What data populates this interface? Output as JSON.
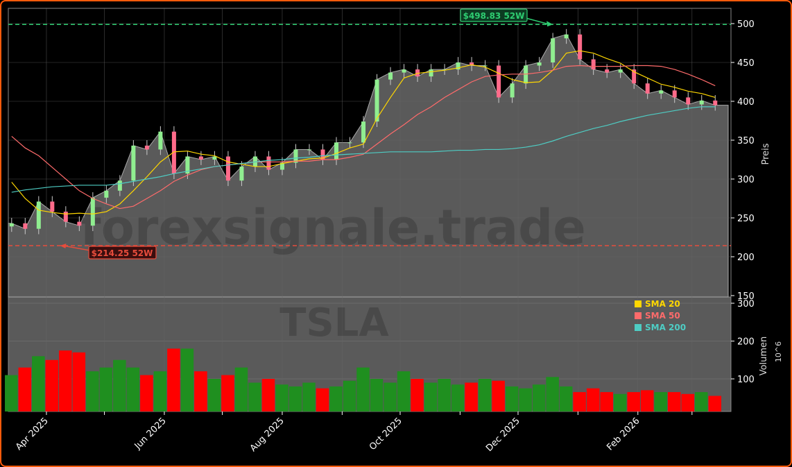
{
  "chart_data": [
    {
      "type": "candlestick",
      "panel": "price",
      "ticker_watermark": "TSLA",
      "watermark": "forexsignale.trade",
      "ylabel": "Preis",
      "ylim": [
        150,
        520
      ],
      "yticks": [
        150,
        200,
        250,
        300,
        350,
        400,
        450,
        500
      ],
      "grid": true,
      "x": [
        "2025-03-14",
        "2025-03-21",
        "2025-03-28",
        "2025-04-04",
        "2025-04-11",
        "2025-04-18",
        "2025-04-25",
        "2025-05-02",
        "2025-05-09",
        "2025-05-16",
        "2025-05-23",
        "2025-05-30",
        "2025-06-06",
        "2025-06-13",
        "2025-06-20",
        "2025-06-27",
        "2025-07-04",
        "2025-07-11",
        "2025-07-18",
        "2025-07-25",
        "2025-08-01",
        "2025-08-08",
        "2025-08-15",
        "2025-08-22",
        "2025-08-29",
        "2025-09-05",
        "2025-09-12",
        "2025-09-19",
        "2025-09-26",
        "2025-10-03",
        "2025-10-10",
        "2025-10-17",
        "2025-10-24",
        "2025-10-31",
        "2025-11-07",
        "2025-11-14",
        "2025-11-21",
        "2025-11-28",
        "2025-12-05",
        "2025-12-12",
        "2025-12-19",
        "2025-12-26",
        "2026-01-02",
        "2026-01-09",
        "2026-01-16",
        "2026-01-23",
        "2026-01-30",
        "2026-02-06",
        "2026-02-13",
        "2026-02-20",
        "2026-02-27",
        "2026-03-06",
        "2026-03-13"
      ],
      "close": [
        243,
        236,
        271,
        258,
        245,
        240,
        276,
        285,
        298,
        343,
        338,
        361,
        307,
        329,
        325,
        329,
        298,
        316,
        329,
        312,
        321,
        338,
        338,
        325,
        347,
        347,
        374,
        428,
        437,
        441,
        432,
        441,
        441,
        450,
        446,
        446,
        405,
        423,
        446,
        450,
        481,
        486,
        454,
        441,
        437,
        441,
        423,
        410,
        414,
        405,
        396,
        401,
        395
      ],
      "series": [
        {
          "name": "SMA 20",
          "color": "#ffd700",
          "values": [
            296,
            275,
            260,
            257,
            255,
            256,
            255,
            258,
            268,
            285,
            303,
            322,
            335,
            336,
            332,
            330,
            322,
            319,
            316,
            316,
            320,
            323,
            326,
            327,
            333,
            340,
            345,
            378,
            405,
            430,
            436,
            438,
            440,
            443,
            447,
            444,
            436,
            428,
            424,
            425,
            440,
            462,
            465,
            462,
            455,
            449,
            438,
            430,
            422,
            418,
            413,
            410,
            405
          ]
        },
        {
          "name": "SMA 50",
          "color": "#ff6b6b",
          "values": [
            355,
            340,
            330,
            315,
            300,
            285,
            275,
            268,
            262,
            265,
            275,
            285,
            297,
            305,
            312,
            316,
            318,
            320,
            322,
            322,
            322,
            323,
            323,
            325,
            325,
            328,
            332,
            345,
            358,
            370,
            383,
            393,
            405,
            415,
            425,
            432,
            434,
            435,
            435,
            437,
            440,
            445,
            446,
            445,
            445,
            445,
            446,
            446,
            445,
            441,
            435,
            428,
            420
          ]
        },
        {
          "name": "SMA 200",
          "color": "#4ecdc4",
          "values": [
            283,
            286,
            288,
            290,
            291,
            292,
            292,
            292,
            294,
            297,
            300,
            303,
            307,
            310,
            313,
            316,
            318,
            320,
            322,
            324,
            325,
            327,
            328,
            330,
            331,
            332,
            333,
            334,
            335,
            335,
            335,
            335,
            336,
            337,
            337,
            338,
            338,
            339,
            341,
            344,
            349,
            355,
            360,
            365,
            369,
            374,
            378,
            382,
            385,
            388,
            391,
            393,
            393
          ]
        }
      ],
      "annotations": {
        "high": {
          "value": 498.83,
          "label": "$498.83 52W",
          "date": "2025-12-19",
          "color": "#2ecc71"
        },
        "low": {
          "value": 214.25,
          "label": "$214.25 52W",
          "date": "2025-04-08",
          "color": "#e74c3c"
        }
      },
      "legend": {
        "placement": "lower-right",
        "entries": [
          "SMA 20",
          "SMA 50",
          "SMA 200"
        ]
      },
      "colors": {
        "up": "#90ee90",
        "down": "#ff6b8a",
        "area": "#5a5a5a",
        "background": "#000000"
      }
    },
    {
      "type": "bar",
      "panel": "volume",
      "ylabel": "Volumen",
      "yunit": "10^6",
      "ylim": [
        13,
        303
      ],
      "yticks": [
        100,
        200,
        300
      ],
      "xticks": [
        "Apr 2025",
        "Jun 2025",
        "Aug 2025",
        "Oct 2025",
        "Dec 2025",
        "Feb 2026"
      ],
      "xtick_dates": [
        "2025-04-01",
        "2025-06-01",
        "2025-08-01",
        "2025-10-01",
        "2025-12-01",
        "2026-02-01"
      ],
      "minor_tick_dates": [
        "2025-05-01",
        "2025-07-01",
        "2025-09-01",
        "2025-11-01",
        "2026-01-01",
        "2026-03-01"
      ],
      "values": [
        110,
        130,
        160,
        150,
        175,
        170,
        120,
        130,
        150,
        130,
        110,
        120,
        180,
        180,
        120,
        100,
        110,
        130,
        90,
        100,
        85,
        80,
        90,
        75,
        80,
        95,
        130,
        100,
        90,
        120,
        100,
        90,
        100,
        85,
        90,
        100,
        95,
        80,
        75,
        85,
        105,
        80,
        65,
        75,
        65,
        60,
        65,
        70,
        65,
        65,
        60,
        65,
        55
      ],
      "colors": {
        "up": "#1f8f1f",
        "down": "#ff0000",
        "background": "#5a5a5a"
      }
    }
  ]
}
